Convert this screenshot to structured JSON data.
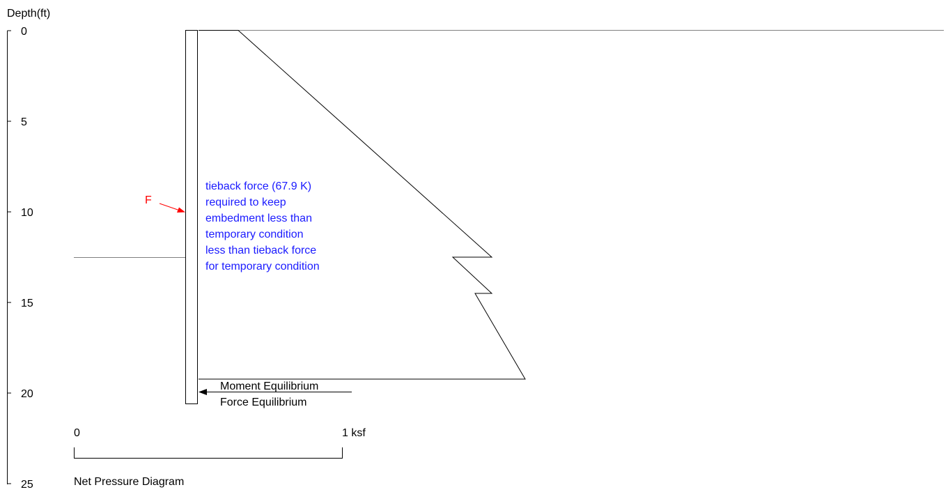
{
  "axis": {
    "label": "Depth(ft)",
    "ticks": [
      "0",
      "5",
      "10",
      "15",
      "20",
      "25"
    ]
  },
  "annotation": {
    "force_label": "F",
    "lines": [
      "tieback force (67.9 K)",
      "required to keep",
      "embedment less than",
      "temporary condition",
      "less than tieback force",
      "for temporary condition"
    ],
    "text_color": "#1a1aff",
    "force_color": "#ff0000"
  },
  "equilibrium": {
    "moment_label": "Moment Equilibrium",
    "force_label": "Force Equilibrium"
  },
  "scale_bar": {
    "start_label": "0",
    "end_label": "1 ksf"
  },
  "caption": "Net Pressure Diagram"
}
